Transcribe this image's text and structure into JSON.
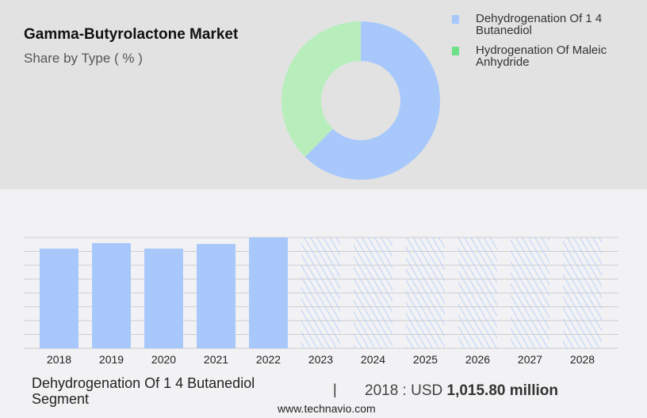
{
  "header": {
    "title": "Gamma-Butyrolactone Market",
    "subtitle": "Share by Type ( % )"
  },
  "colors": {
    "blue": "#a8c8fc",
    "green": "#b8eebc",
    "green_swatch": "#6ee08a",
    "grid": "#cfcfcf"
  },
  "chart_data": [
    {
      "type": "pie",
      "donut": true,
      "categories": [
        "Dehydrogenation Of 1 4 Butanediol",
        "Hydrogenation Of Maleic Anhydride"
      ],
      "values": [
        62.4,
        37.6
      ],
      "legend": "top-right"
    },
    {
      "type": "bar",
      "categories": [
        "2018",
        "2019",
        "2020",
        "2021",
        "2022",
        "2023",
        "2024",
        "2025",
        "2026",
        "2027",
        "2028"
      ],
      "values": [
        1015.8,
        1072,
        1016,
        1064,
        1129,
        null,
        null,
        null,
        null,
        null,
        null
      ],
      "forecast": [
        "2023",
        "2024",
        "2025",
        "2026",
        "2027",
        "2028"
      ],
      "unit": "USD million",
      "grid": true
    }
  ],
  "footer": {
    "segment": "Dehydrogenation Of 1 4 Butanediol Segment",
    "separator": "|",
    "year_label": "2018 : USD",
    "value": "1,015.80 million",
    "site": "www.technavio.com"
  }
}
